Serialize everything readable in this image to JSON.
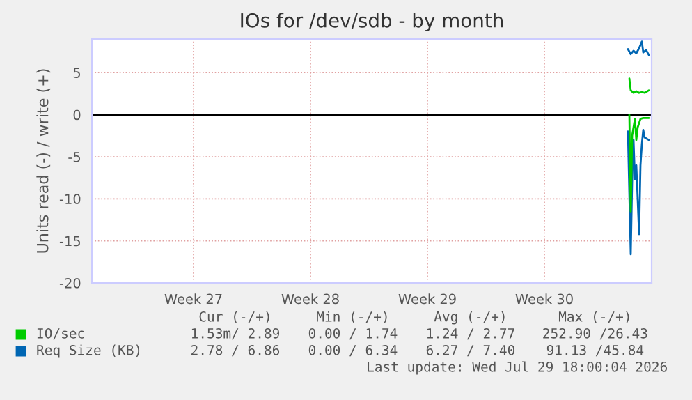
{
  "chart_data": {
    "type": "line",
    "title": "IOs for /dev/sdb - by month",
    "ylabel": "Units read (-) / write (+)",
    "xlim": [
      "2026-06-26T10:00",
      "2026-07-29T22:00"
    ],
    "ylim": [
      -20,
      9
    ],
    "xticks": [
      {
        "value": "2026-07-02T12:00",
        "label": "Week 27"
      },
      {
        "value": "2026-07-09T12:00",
        "label": "Week 28"
      },
      {
        "value": "2026-07-16T12:00",
        "label": "Week 29"
      },
      {
        "value": "2026-07-23T12:00",
        "label": "Week 30"
      }
    ],
    "yticks": [
      -20,
      -15,
      -10,
      -5,
      0,
      5
    ],
    "grid": true,
    "legend": "bottom",
    "ref_lines": [
      {
        "axis": "y",
        "value": 0,
        "color": "#000000"
      }
    ],
    "series": [
      {
        "name": "IO/sec",
        "color": "#00cc00",
        "x": [
          "2026-07-28T14:00",
          "2026-07-28T16:00",
          "2026-07-28T20:00",
          "2026-07-29T00:00",
          "2026-07-29T04:00",
          "2026-07-29T08:00",
          "2026-07-29T12:00",
          "2026-07-29T16:00",
          "2026-07-29T18:00"
        ],
        "values": [
          4.3,
          2.9,
          2.6,
          2.8,
          2.6,
          2.7,
          2.6,
          2.8,
          2.9
        ]
      },
      {
        "color": "#00cc00",
        "x": [
          "2026-07-28T14:00",
          "2026-07-28T16:00",
          "2026-07-28T18:00",
          "2026-07-28T22:00",
          "2026-07-29T00:00",
          "2026-07-29T02:00",
          "2026-07-29T06:00",
          "2026-07-29T10:00",
          "2026-07-29T18:00"
        ],
        "values": [
          0,
          -11.5,
          -2.5,
          -0.5,
          -3.0,
          -1.5,
          -0.5,
          -0.4,
          -0.4
        ]
      },
      {
        "name": "Req Size (KB)",
        "color": "#0066b3",
        "x": [
          "2026-07-28T12:00",
          "2026-07-28T16:00",
          "2026-07-28T20:00",
          "2026-07-29T00:00",
          "2026-07-29T04:00",
          "2026-07-29T08:00",
          "2026-07-29T10:00",
          "2026-07-29T14:00",
          "2026-07-29T18:00"
        ],
        "values": [
          7.8,
          7.2,
          7.6,
          7.3,
          7.9,
          8.7,
          7.4,
          7.7,
          7.1
        ]
      },
      {
        "color": "#0066b3",
        "x": [
          "2026-07-28T12:00",
          "2026-07-28T16:00",
          "2026-07-28T18:00",
          "2026-07-28T20:00",
          "2026-07-28T22:00",
          "2026-07-29T00:00",
          "2026-07-29T04:00",
          "2026-07-29T06:00",
          "2026-07-29T08:00",
          "2026-07-29T10:00",
          "2026-07-29T12:00",
          "2026-07-29T18:00"
        ],
        "values": [
          -2,
          -16.6,
          -8,
          -3,
          -7.7,
          -6,
          -14.2,
          -6,
          -3.5,
          -1.8,
          -2.7,
          -3
        ]
      }
    ],
    "annotations": [
      "Cur (-/+)",
      "Min (-/+)",
      "Avg (-/+)",
      "Max (-/+)",
      "1.53m/ 2.89",
      "0.00 / 1.74",
      "1.24 / 2.77",
      "252.90 /26.43",
      "2.78 / 6.86",
      "0.00 / 6.34",
      "6.27 / 7.40",
      "91.13 /45.84",
      "Last update: Wed Jul 29 18:00:04 2026"
    ]
  }
}
